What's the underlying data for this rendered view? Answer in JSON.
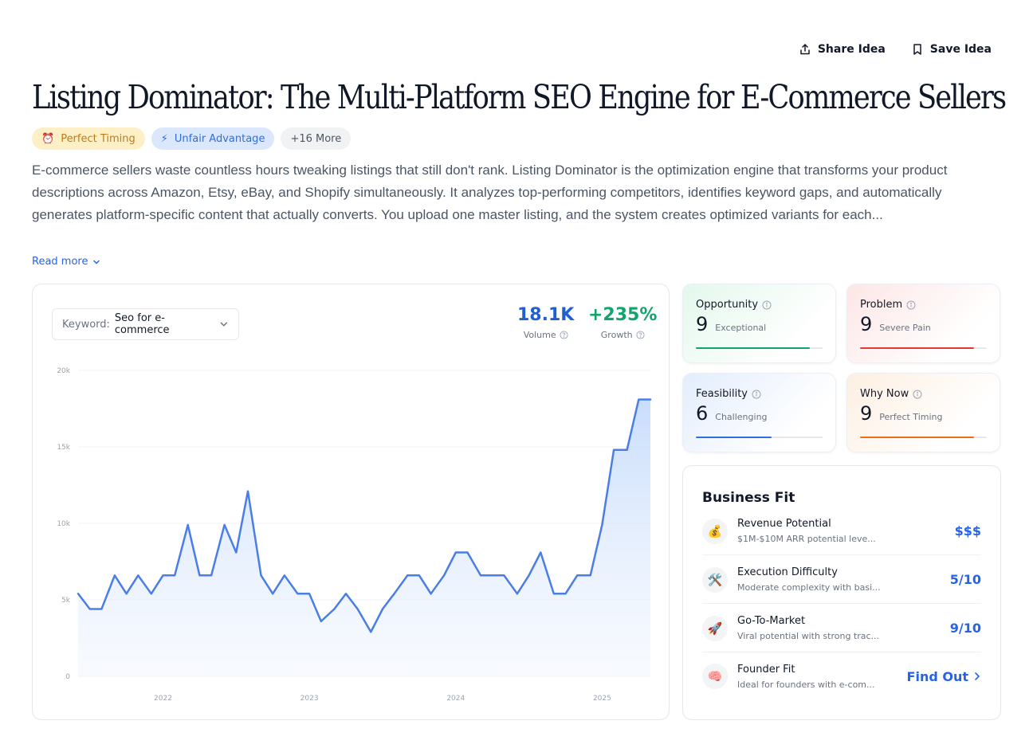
{
  "header": {
    "share_label": "Share Idea",
    "save_label": "Save Idea",
    "title": "Listing Dominator: The Multi-Platform SEO Engine for E-Commerce Sellers"
  },
  "badges": [
    {
      "icon": "alarm-clock-icon",
      "glyph": "⏰",
      "label": "Perfect Timing"
    },
    {
      "icon": "lightning-icon",
      "glyph": "⚡",
      "label": "Unfair Advantage"
    },
    {
      "label": "+16 More"
    }
  ],
  "description": "E-commerce sellers waste countless hours tweaking listings that still don't rank. Listing Dominator is the optimization engine that transforms your product descriptions across Amazon, Etsy, eBay, and Shopify simultaneously. It analyzes top-performing competitors, identifies keyword gaps, and automatically generates platform-specific content that actually converts. You upload one master listing, and the system creates optimized variants for each...",
  "read_more_label": "Read more",
  "keyword": {
    "label": "Keyword:",
    "value": "Seo for e-commerce"
  },
  "stats": {
    "volume": {
      "value": "18.1K",
      "label": "Volume"
    },
    "growth": {
      "value": "+235%",
      "label": "Growth"
    }
  },
  "chart_data": {
    "type": "area",
    "y_ticks": [
      "20k",
      "15k",
      "10k",
      "5k",
      "0"
    ],
    "ylim": [
      0,
      20000
    ],
    "x_ticks": [
      {
        "label": "2022",
        "x": 2022.0
      },
      {
        "label": "2023",
        "x": 2023.0
      },
      {
        "label": "2024",
        "x": 2024.0
      },
      {
        "label": "2025",
        "x": 2025.0
      }
    ],
    "xlim": [
      2021.42,
      2025.33
    ],
    "series": [
      {
        "x": [
          2021.42,
          2021.5,
          2021.58,
          2021.67,
          2021.75,
          2021.83,
          2021.92,
          2022.0,
          2022.08,
          2022.17,
          2022.25,
          2022.33,
          2022.42,
          2022.5,
          2022.58,
          2022.67,
          2022.75,
          2022.83,
          2022.92,
          2023.0,
          2023.08,
          2023.17,
          2023.25,
          2023.33,
          2023.42,
          2023.5,
          2023.58,
          2023.67,
          2023.75,
          2023.83,
          2023.92,
          2024.0,
          2024.08,
          2024.17,
          2024.25,
          2024.33,
          2024.42,
          2024.5,
          2024.58,
          2024.67,
          2024.75,
          2024.83,
          2024.92,
          2025.0,
          2025.08,
          2025.17,
          2025.25,
          2025.33
        ],
        "y": [
          5400,
          4400,
          4400,
          6600,
          5400,
          6600,
          5400,
          6600,
          6600,
          9900,
          6600,
          6600,
          9900,
          8100,
          12100,
          6600,
          5400,
          6600,
          5400,
          5400,
          3600,
          4400,
          5400,
          4400,
          2900,
          4400,
          5400,
          6600,
          6600,
          5400,
          6600,
          8100,
          8100,
          6600,
          6600,
          6600,
          5400,
          6600,
          8100,
          5400,
          5400,
          6600,
          6600,
          9900,
          14800,
          14800,
          18100,
          18100
        ]
      }
    ]
  },
  "scores": [
    {
      "key": "opp",
      "label": "Opportunity",
      "score": "9",
      "desc": "Exceptional",
      "level": 0.9,
      "color": "#10a56b"
    },
    {
      "key": "prob",
      "label": "Problem",
      "score": "9",
      "desc": "Severe Pain",
      "level": 0.9,
      "color": "#e53935"
    },
    {
      "key": "feas",
      "label": "Feasibility",
      "score": "6",
      "desc": "Challenging",
      "level": 0.6,
      "color": "#2f6fdb"
    },
    {
      "key": "why",
      "label": "Why Now",
      "score": "9",
      "desc": "Perfect Timing",
      "level": 0.9,
      "color": "#ef6c1a"
    }
  ],
  "business_fit": {
    "title": "Business Fit",
    "items": [
      {
        "icon": "money-bag-icon",
        "glyph": "💰",
        "name": "Revenue Potential",
        "sub": "$1M-$10M ARR potential leve...",
        "value": "$$$"
      },
      {
        "icon": "tools-icon",
        "glyph": "🛠️",
        "name": "Execution Difficulty",
        "sub": "Moderate complexity with basi...",
        "value": "5/10"
      },
      {
        "icon": "rocket-icon",
        "glyph": "🚀",
        "name": "Go-To-Market",
        "sub": "Viral potential with strong trac...",
        "value": "9/10"
      },
      {
        "icon": "brain-icon",
        "glyph": "🧠",
        "name": "Founder Fit",
        "sub": "Ideal for founders with e-com...",
        "value": "Find Out"
      }
    ]
  }
}
